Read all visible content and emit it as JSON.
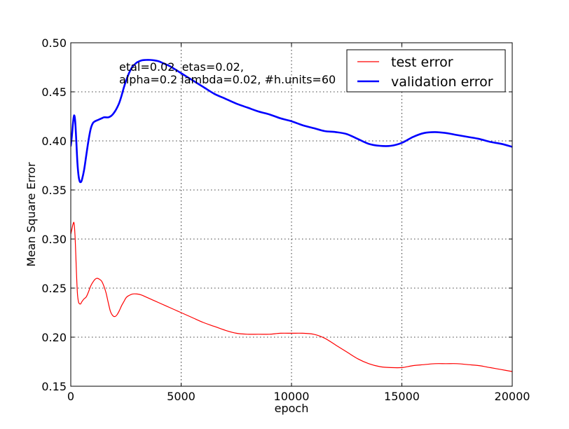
{
  "chart_data": {
    "type": "line",
    "title": "",
    "xlabel": "epoch",
    "ylabel": "Mean Square Error",
    "xlim": [
      0,
      20000
    ],
    "ylim": [
      0.15,
      0.5
    ],
    "xticks": [
      0,
      5000,
      10000,
      15000,
      20000
    ],
    "xtick_labels": [
      "0",
      "5000",
      "10000",
      "15000",
      "20000"
    ],
    "yticks": [
      0.15,
      0.2,
      0.25,
      0.3,
      0.35,
      0.4,
      0.45,
      0.5
    ],
    "ytick_labels": [
      "0.15",
      "0.20",
      "0.25",
      "0.30",
      "0.35",
      "0.40",
      "0.45",
      "0.50"
    ],
    "grid": true,
    "legend_position": "top-right",
    "annotation": [
      "etal=0.02, etas=0.02,",
      "alpha=0.2 lambda=0.02, #h.units=60"
    ],
    "series": [
      {
        "name": "test error",
        "color": "#ff0000",
        "linewidth": 1.2,
        "x": [
          0,
          50,
          100,
          150,
          200,
          250,
          300,
          350,
          400,
          450,
          500,
          600,
          700,
          800,
          900,
          1000,
          1100,
          1200,
          1300,
          1400,
          1500,
          1600,
          1700,
          1800,
          1900,
          2000,
          2100,
          2200,
          2300,
          2400,
          2500,
          2600,
          2800,
          3000,
          3200,
          3400,
          3700,
          4000,
          4500,
          5000,
          5500,
          6000,
          6500,
          7000,
          7500,
          8000,
          8500,
          9000,
          9500,
          10000,
          10500,
          11000,
          11500,
          12000,
          12500,
          13000,
          13500,
          14000,
          14500,
          15000,
          15500,
          16000,
          16500,
          17000,
          17500,
          18000,
          18500,
          19000,
          19500,
          20000
        ],
        "y": [
          0.305,
          0.31,
          0.315,
          0.316,
          0.3,
          0.27,
          0.245,
          0.236,
          0.234,
          0.234,
          0.236,
          0.239,
          0.241,
          0.246,
          0.252,
          0.256,
          0.259,
          0.26,
          0.259,
          0.257,
          0.252,
          0.245,
          0.235,
          0.226,
          0.222,
          0.221,
          0.223,
          0.227,
          0.232,
          0.236,
          0.24,
          0.242,
          0.244,
          0.244,
          0.243,
          0.241,
          0.238,
          0.235,
          0.23,
          0.225,
          0.22,
          0.215,
          0.211,
          0.207,
          0.204,
          0.203,
          0.203,
          0.203,
          0.204,
          0.204,
          0.204,
          0.203,
          0.199,
          0.192,
          0.185,
          0.178,
          0.173,
          0.17,
          0.169,
          0.169,
          0.171,
          0.172,
          0.173,
          0.173,
          0.173,
          0.172,
          0.171,
          0.169,
          0.167,
          0.165
        ]
      },
      {
        "name": "validation error",
        "color": "#0000ff",
        "linewidth": 2.6,
        "x": [
          0,
          50,
          100,
          150,
          200,
          250,
          300,
          350,
          400,
          450,
          500,
          600,
          700,
          800,
          900,
          1000,
          1100,
          1200,
          1300,
          1400,
          1500,
          1600,
          1700,
          1800,
          1900,
          2000,
          2100,
          2200,
          2300,
          2400,
          2500,
          2600,
          2700,
          2800,
          2900,
          3000,
          3200,
          3400,
          3600,
          3800,
          4000,
          4200,
          4500,
          5000,
          5500,
          6000,
          6500,
          7000,
          7500,
          8000,
          8500,
          9000,
          9500,
          10000,
          10500,
          11000,
          11500,
          12000,
          12500,
          13000,
          13500,
          14000,
          14500,
          15000,
          15500,
          16000,
          16500,
          17000,
          17500,
          18000,
          18500,
          19000,
          19500,
          20000
        ],
        "y": [
          0.395,
          0.405,
          0.418,
          0.426,
          0.42,
          0.4,
          0.378,
          0.365,
          0.359,
          0.358,
          0.36,
          0.37,
          0.385,
          0.4,
          0.412,
          0.418,
          0.42,
          0.421,
          0.422,
          0.423,
          0.424,
          0.424,
          0.424,
          0.425,
          0.427,
          0.43,
          0.434,
          0.439,
          0.446,
          0.454,
          0.461,
          0.467,
          0.472,
          0.476,
          0.478,
          0.48,
          0.482,
          0.4825,
          0.4825,
          0.482,
          0.481,
          0.479,
          0.476,
          0.469,
          0.462,
          0.455,
          0.448,
          0.443,
          0.438,
          0.434,
          0.43,
          0.427,
          0.423,
          0.42,
          0.416,
          0.413,
          0.41,
          0.409,
          0.407,
          0.402,
          0.397,
          0.395,
          0.395,
          0.398,
          0.404,
          0.408,
          0.409,
          0.408,
          0.406,
          0.404,
          0.402,
          0.399,
          0.397,
          0.394
        ]
      }
    ]
  }
}
